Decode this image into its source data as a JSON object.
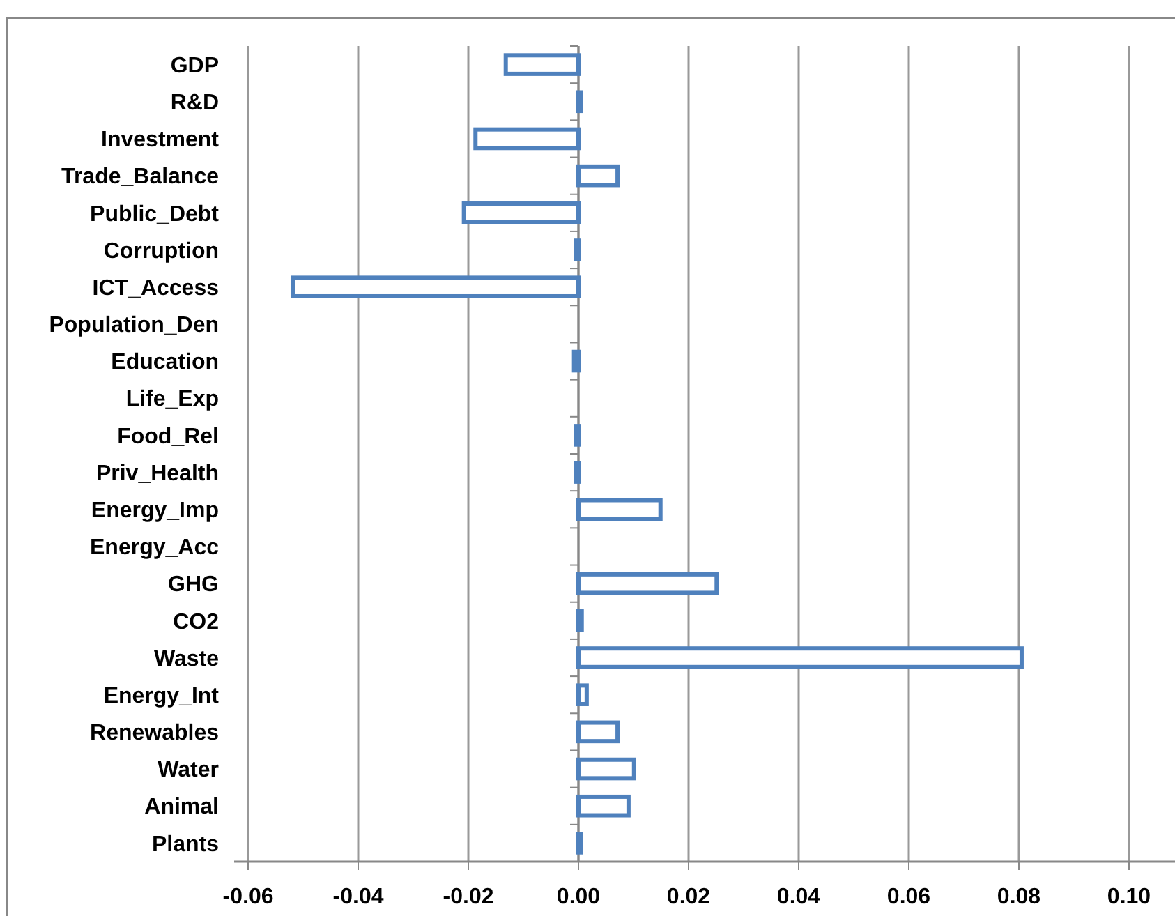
{
  "chart_data": {
    "type": "bar",
    "orientation": "horizontal",
    "categories": [
      "GDP",
      "R&D",
      "Investment",
      "Trade_Balance",
      "Public_Debt",
      "Corruption",
      "ICT_Access",
      "Population_Den",
      "Education",
      "Life_Exp",
      "Food_Rel",
      "Priv_Health",
      "Energy_Imp",
      "Energy_Acc",
      "GHG",
      "CO2",
      "Waste",
      "Energy_Int",
      "Renewables",
      "Water",
      "Animal",
      "Plants"
    ],
    "values": [
      -0.0132,
      0.0005,
      -0.0187,
      0.0071,
      -0.0208,
      -0.0005,
      -0.0519,
      0,
      -0.0008,
      0,
      -0.0004,
      -0.0004,
      0.0149,
      0,
      0.0251,
      0.0006,
      0.0805,
      0.0015,
      0.0071,
      0.0101,
      0.0091,
      0.0005
    ],
    "color": "#4f81bd",
    "xlim": [
      -0.06,
      0.1
    ],
    "xticks": [
      {
        "value": -0.06,
        "label": "-0.06"
      },
      {
        "value": -0.04,
        "label": "-0.04"
      },
      {
        "value": -0.02,
        "label": "-0.02"
      },
      {
        "value": 0,
        "label": "0.00"
      },
      {
        "value": 0.02,
        "label": "0.02"
      },
      {
        "value": 0.04,
        "label": "0.04"
      },
      {
        "value": 0.06,
        "label": "0.06"
      },
      {
        "value": 0.08,
        "label": "0.08"
      },
      {
        "value": 0.1,
        "label": "0.10"
      }
    ],
    "grid": "x"
  }
}
